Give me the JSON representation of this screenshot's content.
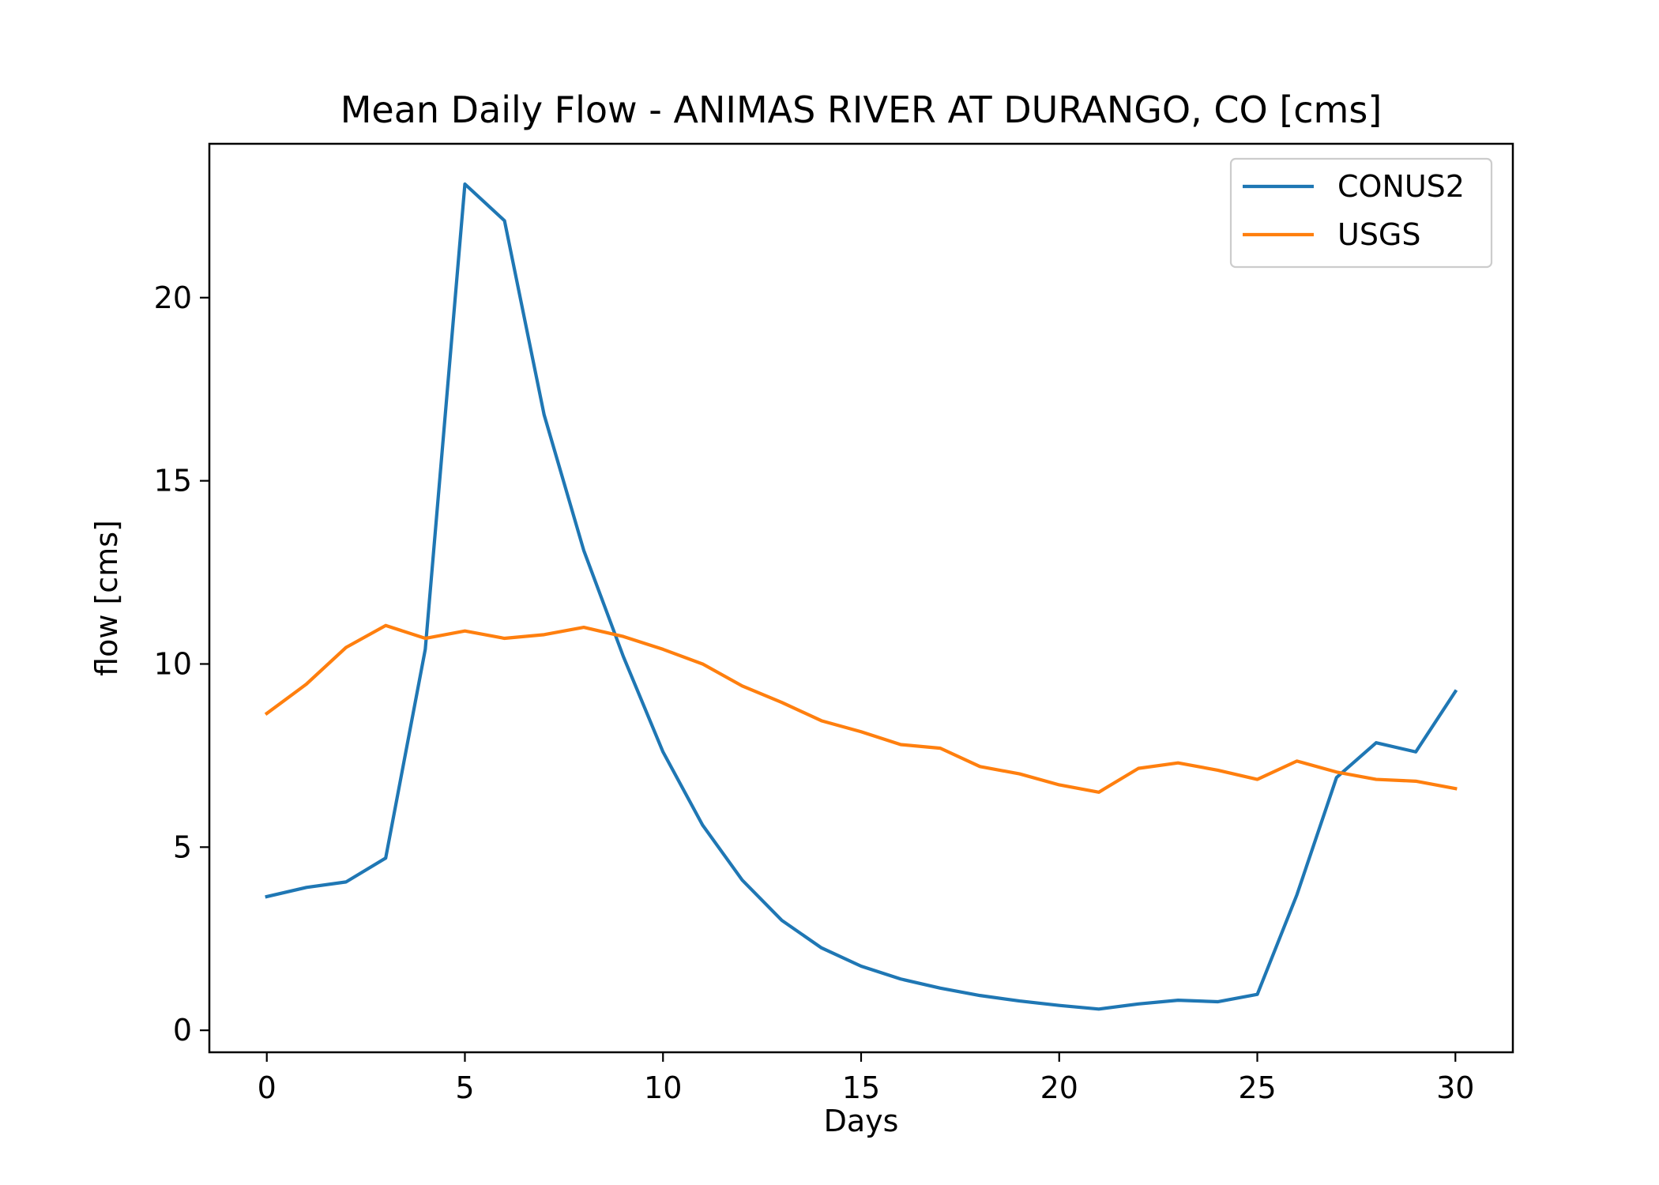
{
  "chart_data": {
    "type": "line",
    "title": "Mean Daily Flow - ANIMAS RIVER AT DURANGO, CO [cms]",
    "xlabel": "Days",
    "ylabel": "flow [cms]",
    "xlim": [
      -1.45,
      31.45
    ],
    "ylim": [
      -0.6,
      24.2
    ],
    "xticks": [
      0,
      5,
      10,
      15,
      20,
      25,
      30
    ],
    "yticks": [
      0,
      5,
      10,
      15,
      20
    ],
    "grid": false,
    "legend_position": "top-right",
    "x": [
      0,
      1,
      2,
      3,
      4,
      5,
      6,
      7,
      8,
      9,
      10,
      11,
      12,
      13,
      14,
      15,
      16,
      17,
      18,
      19,
      20,
      21,
      22,
      23,
      24,
      25,
      26,
      27,
      28,
      29,
      30
    ],
    "series": [
      {
        "name": "CONUS2",
        "color": "#1f77b4",
        "values": [
          3.65,
          3.9,
          4.05,
          4.7,
          10.4,
          23.1,
          22.1,
          16.8,
          13.1,
          10.2,
          7.6,
          5.6,
          4.1,
          3.0,
          2.25,
          1.75,
          1.4,
          1.15,
          0.95,
          0.8,
          0.68,
          0.58,
          0.72,
          0.82,
          0.78,
          0.98,
          3.7,
          6.9,
          7.85,
          7.6,
          9.25
        ]
      },
      {
        "name": "USGS",
        "color": "#ff7f0e",
        "values": [
          8.65,
          9.45,
          10.45,
          11.05,
          10.7,
          10.9,
          10.7,
          10.8,
          11.0,
          10.75,
          10.4,
          10.0,
          9.4,
          8.95,
          8.45,
          8.15,
          7.8,
          7.7,
          7.2,
          7.0,
          6.7,
          6.5,
          7.15,
          7.3,
          7.1,
          6.85,
          7.35,
          7.05,
          6.85,
          6.8,
          6.6
        ]
      }
    ]
  }
}
